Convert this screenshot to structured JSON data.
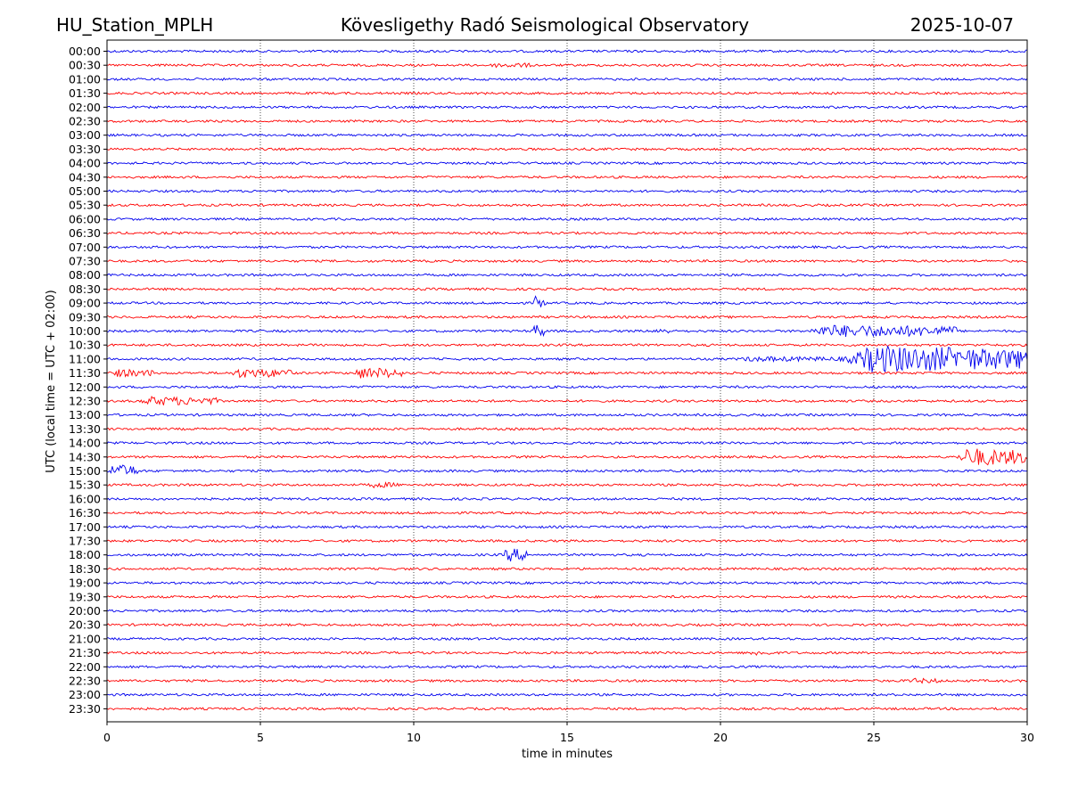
{
  "header": {
    "station": "HU_Station_MPLH",
    "observatory": "Kövesligethy Radó Seismological Observatory",
    "date": "2025-10-07"
  },
  "colors": {
    "trace_a": "#0000ee",
    "trace_b": "#ff0000",
    "grid": "#000000",
    "frame": "#000000"
  },
  "chart_data": {
    "type": "line",
    "chart_kind": "helicorder",
    "title": "Kövesligethy Radó Seismological Observatory",
    "xlabel": "time in minutes",
    "ylabel": "UTC (local time = UTC + 02:00)",
    "xlim": [
      0,
      30
    ],
    "x_ticks": [
      "0",
      "5",
      "10",
      "15",
      "20",
      "25",
      "30"
    ],
    "grid_x": true,
    "row_labels": [
      "00:00",
      "00:30",
      "01:00",
      "01:30",
      "02:00",
      "02:30",
      "03:00",
      "03:30",
      "04:00",
      "04:30",
      "05:00",
      "05:30",
      "06:00",
      "06:30",
      "07:00",
      "07:30",
      "08:00",
      "08:30",
      "09:00",
      "09:30",
      "10:00",
      "10:30",
      "11:00",
      "11:30",
      "12:00",
      "12:30",
      "13:00",
      "13:30",
      "14:00",
      "14:30",
      "15:00",
      "15:30",
      "16:00",
      "16:30",
      "17:00",
      "17:30",
      "18:00",
      "18:30",
      "19:00",
      "19:30",
      "20:00",
      "20:30",
      "21:00",
      "21:30",
      "22:00",
      "22:30",
      "23:00",
      "23:30"
    ],
    "row_colors_cycle": [
      "blue",
      "red"
    ],
    "events": [
      {
        "row": "00:30",
        "start_min": 12.5,
        "end_min": 13.8,
        "amplitude": 0.25
      },
      {
        "row": "09:00",
        "start_min": 13.9,
        "end_min": 14.3,
        "amplitude": 1.0
      },
      {
        "row": "10:00",
        "start_min": 13.8,
        "end_min": 14.3,
        "amplitude": 1.0
      },
      {
        "row": "10:00",
        "start_min": 17.8,
        "end_min": 18.3,
        "amplitude": 0.35
      },
      {
        "row": "10:00",
        "start_min": 22.8,
        "end_min": 27.7,
        "amplitude": 0.9
      },
      {
        "row": "11:00",
        "start_min": 20.5,
        "end_min": 24.0,
        "amplitude": 0.25
      },
      {
        "row": "11:00",
        "start_min": 24.0,
        "end_min": 30.0,
        "amplitude": 2.2
      },
      {
        "row": "11:30",
        "start_min": 0.0,
        "end_min": 1.5,
        "amplitude": 0.5
      },
      {
        "row": "11:30",
        "start_min": 4.0,
        "end_min": 6.0,
        "amplitude": 0.65
      },
      {
        "row": "11:30",
        "start_min": 8.0,
        "end_min": 9.6,
        "amplitude": 0.8
      },
      {
        "row": "12:30",
        "start_min": 1.0,
        "end_min": 3.6,
        "amplitude": 0.6
      },
      {
        "row": "14:30",
        "start_min": 27.7,
        "end_min": 30.0,
        "amplitude": 1.4
      },
      {
        "row": "15:00",
        "start_min": 0.0,
        "end_min": 1.0,
        "amplitude": 1.0
      },
      {
        "row": "15:30",
        "start_min": 8.5,
        "end_min": 9.5,
        "amplitude": 0.3
      },
      {
        "row": "18:00",
        "start_min": 12.9,
        "end_min": 13.7,
        "amplitude": 1.0
      },
      {
        "row": "21:30",
        "start_min": 20.9,
        "end_min": 21.6,
        "amplitude": 0.3
      },
      {
        "row": "22:30",
        "start_min": 26.0,
        "end_min": 27.2,
        "amplitude": 0.25
      }
    ]
  }
}
